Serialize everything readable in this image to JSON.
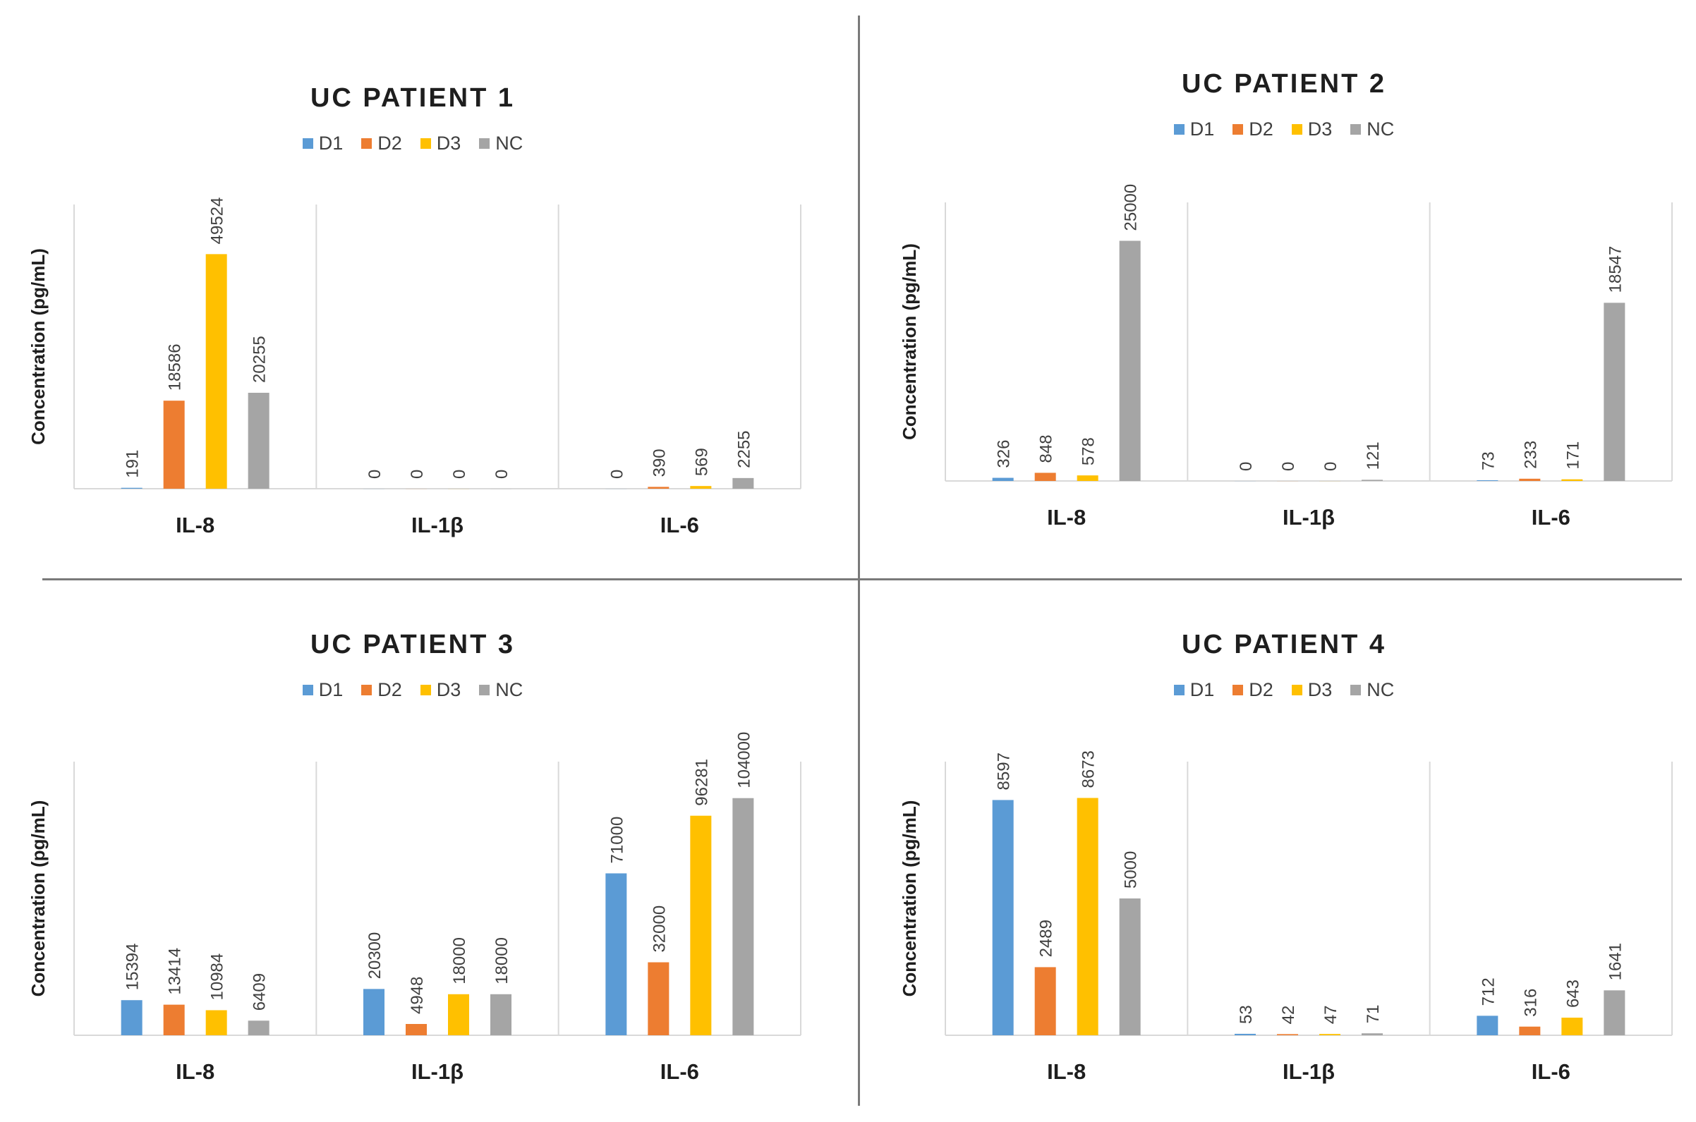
{
  "colors": {
    "D1": "#5b9bd5",
    "D2": "#ed7d31",
    "D3": "#ffc000",
    "NC": "#a5a5a5"
  },
  "chart_data": [
    {
      "type": "bar",
      "title": "UC PATIENT 1",
      "ylabel": "Concentration (pg/mL)",
      "xlabel": "",
      "categories": [
        "IL-8",
        "IL-1β",
        "IL-6"
      ],
      "ylim": [
        0,
        60000
      ],
      "series": [
        {
          "name": "D1",
          "values": [
            191,
            0,
            0
          ]
        },
        {
          "name": "D2",
          "values": [
            18586,
            0,
            390
          ]
        },
        {
          "name": "D3",
          "values": [
            49524,
            0,
            569
          ]
        },
        {
          "name": "NC",
          "values": [
            20255,
            0,
            2255
          ]
        }
      ]
    },
    {
      "type": "bar",
      "title": "UC PATIENT 2",
      "ylabel": "Concentration (pg/mL)",
      "xlabel": "",
      "categories": [
        "IL-8",
        "IL-1β",
        "IL-6"
      ],
      "ylim": [
        0,
        29000
      ],
      "series": [
        {
          "name": "D1",
          "values": [
            326,
            0,
            73
          ]
        },
        {
          "name": "D2",
          "values": [
            848,
            0,
            233
          ]
        },
        {
          "name": "D3",
          "values": [
            578,
            0,
            171
          ]
        },
        {
          "name": "NC",
          "values": [
            25000,
            121,
            18547
          ]
        }
      ]
    },
    {
      "type": "bar",
      "title": "UC PATIENT 3",
      "ylabel": "Concentration (pg/mL)",
      "xlabel": "",
      "categories": [
        "IL-8",
        "IL-1β",
        "IL-6"
      ],
      "ylim": [
        0,
        120000
      ],
      "series": [
        {
          "name": "D1",
          "values": [
            15394,
            20300,
            71000
          ]
        },
        {
          "name": "D2",
          "values": [
            13414,
            4948,
            32000
          ]
        },
        {
          "name": "D3",
          "values": [
            10984,
            18000,
            96281
          ]
        },
        {
          "name": "NC",
          "values": [
            6409,
            18000,
            104000
          ]
        }
      ]
    },
    {
      "type": "bar",
      "title": "UC PATIENT 4",
      "ylabel": "Concentration (pg/mL)",
      "xlabel": "",
      "categories": [
        "IL-8",
        "IL-1β",
        "IL-6"
      ],
      "ylim": [
        0,
        10000
      ],
      "series": [
        {
          "name": "D1",
          "values": [
            8597,
            53,
            712
          ]
        },
        {
          "name": "D2",
          "values": [
            2489,
            42,
            316
          ]
        },
        {
          "name": "D3",
          "values": [
            8673,
            47,
            643
          ]
        },
        {
          "name": "NC",
          "values": [
            5000,
            71,
            1641
          ]
        }
      ]
    }
  ]
}
